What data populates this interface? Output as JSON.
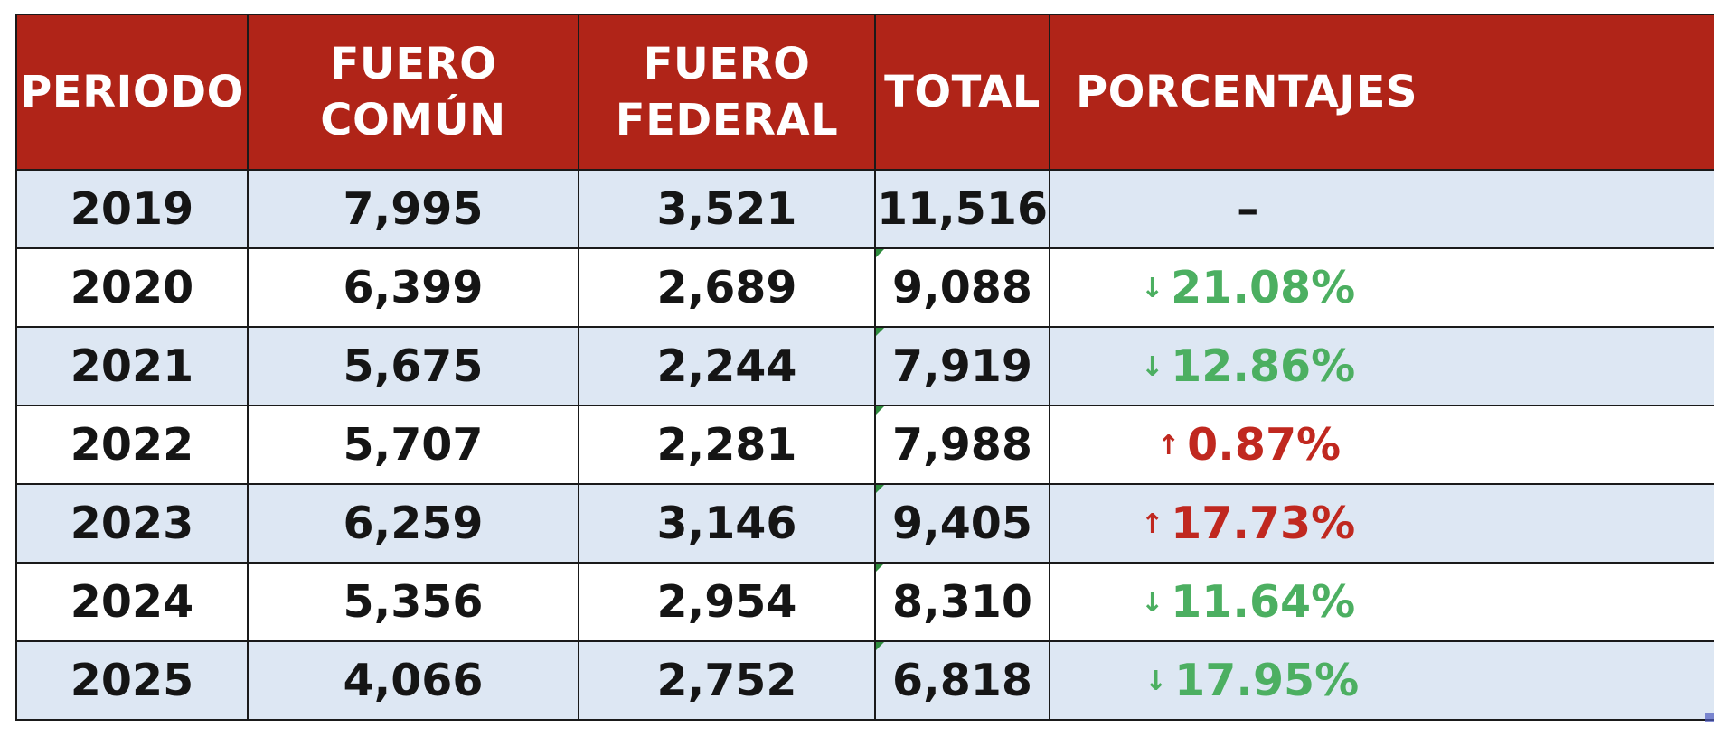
{
  "table": {
    "headers": {
      "periodo": "PERIODO",
      "fuero_comun": "FUERO COMÚN",
      "fuero_federal_line1": "FUERO",
      "fuero_federal_line2": "FEDERAL",
      "total": "TOTAL",
      "porcentajes": "PORCENTAJES"
    },
    "rows": [
      {
        "periodo": "2019",
        "fuero_comun": "7,995",
        "fuero_federal": "3,521",
        "total": "11,516",
        "arrow": "",
        "porcentaje": "–",
        "trend": "none"
      },
      {
        "periodo": "2020",
        "fuero_comun": "6,399",
        "fuero_federal": "2,689",
        "total": "9,088",
        "arrow": "↓",
        "porcentaje": "21.08%",
        "trend": "down"
      },
      {
        "periodo": "2021",
        "fuero_comun": "5,675",
        "fuero_federal": "2,244",
        "total": "7,919",
        "arrow": "↓",
        "porcentaje": "12.86%",
        "trend": "down"
      },
      {
        "periodo": "2022",
        "fuero_comun": "5,707",
        "fuero_federal": "2,281",
        "total": "7,988",
        "arrow": "↑",
        "porcentaje": "0.87%",
        "trend": "up"
      },
      {
        "periodo": "2023",
        "fuero_comun": "6,259",
        "fuero_federal": "3,146",
        "total": "9,405",
        "arrow": "↑",
        "porcentaje": "17.73%",
        "trend": "up"
      },
      {
        "periodo": "2024",
        "fuero_comun": "5,356",
        "fuero_federal": "2,954",
        "total": "8,310",
        "arrow": "↓",
        "porcentaje": "11.64%",
        "trend": "down"
      },
      {
        "periodo": "2025",
        "fuero_comun": "4,066",
        "fuero_federal": "2,752",
        "total": "6,818",
        "arrow": "↓",
        "porcentaje": "17.95%",
        "trend": "down"
      }
    ]
  },
  "colors": {
    "header_bg": "#b02418",
    "header_text": "#ffffff",
    "row_alt_bg": "#dde7f3",
    "decrease": "#4caf61",
    "increase": "#c0281f"
  }
}
